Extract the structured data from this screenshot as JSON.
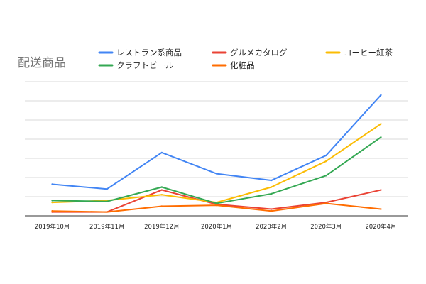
{
  "chart_data": {
    "type": "line",
    "title": "配送商品",
    "xlabel": "",
    "ylabel": "",
    "categories": [
      "2019年10月",
      "2019年11月",
      "2019年12月",
      "2020年1月",
      "2020年2月",
      "2020年3月",
      "2020年4月"
    ],
    "ylim": [
      0,
      7
    ],
    "y_ticks_shown": false,
    "grid": true,
    "legend_position": "top",
    "series": [
      {
        "name": "レストラン系商品",
        "color": "#4285f4",
        "values": [
          1.65,
          1.4,
          3.3,
          2.2,
          1.85,
          3.15,
          6.3
        ]
      },
      {
        "name": "グルメカタログ",
        "color": "#ea4335",
        "values": [
          0.2,
          0.2,
          1.35,
          0.6,
          0.35,
          0.7,
          1.35
        ]
      },
      {
        "name": "コーヒー紅茶",
        "color": "#fbbc04",
        "values": [
          0.7,
          0.8,
          1.1,
          0.7,
          1.5,
          2.85,
          4.8
        ]
      },
      {
        "name": "クラフトビール",
        "color": "#34a853",
        "values": [
          0.8,
          0.75,
          1.5,
          0.65,
          1.15,
          2.1,
          4.1
        ]
      },
      {
        "name": "化粧品",
        "color": "#ff6d01",
        "values": [
          0.25,
          0.2,
          0.5,
          0.55,
          0.25,
          0.65,
          0.35
        ]
      }
    ]
  }
}
